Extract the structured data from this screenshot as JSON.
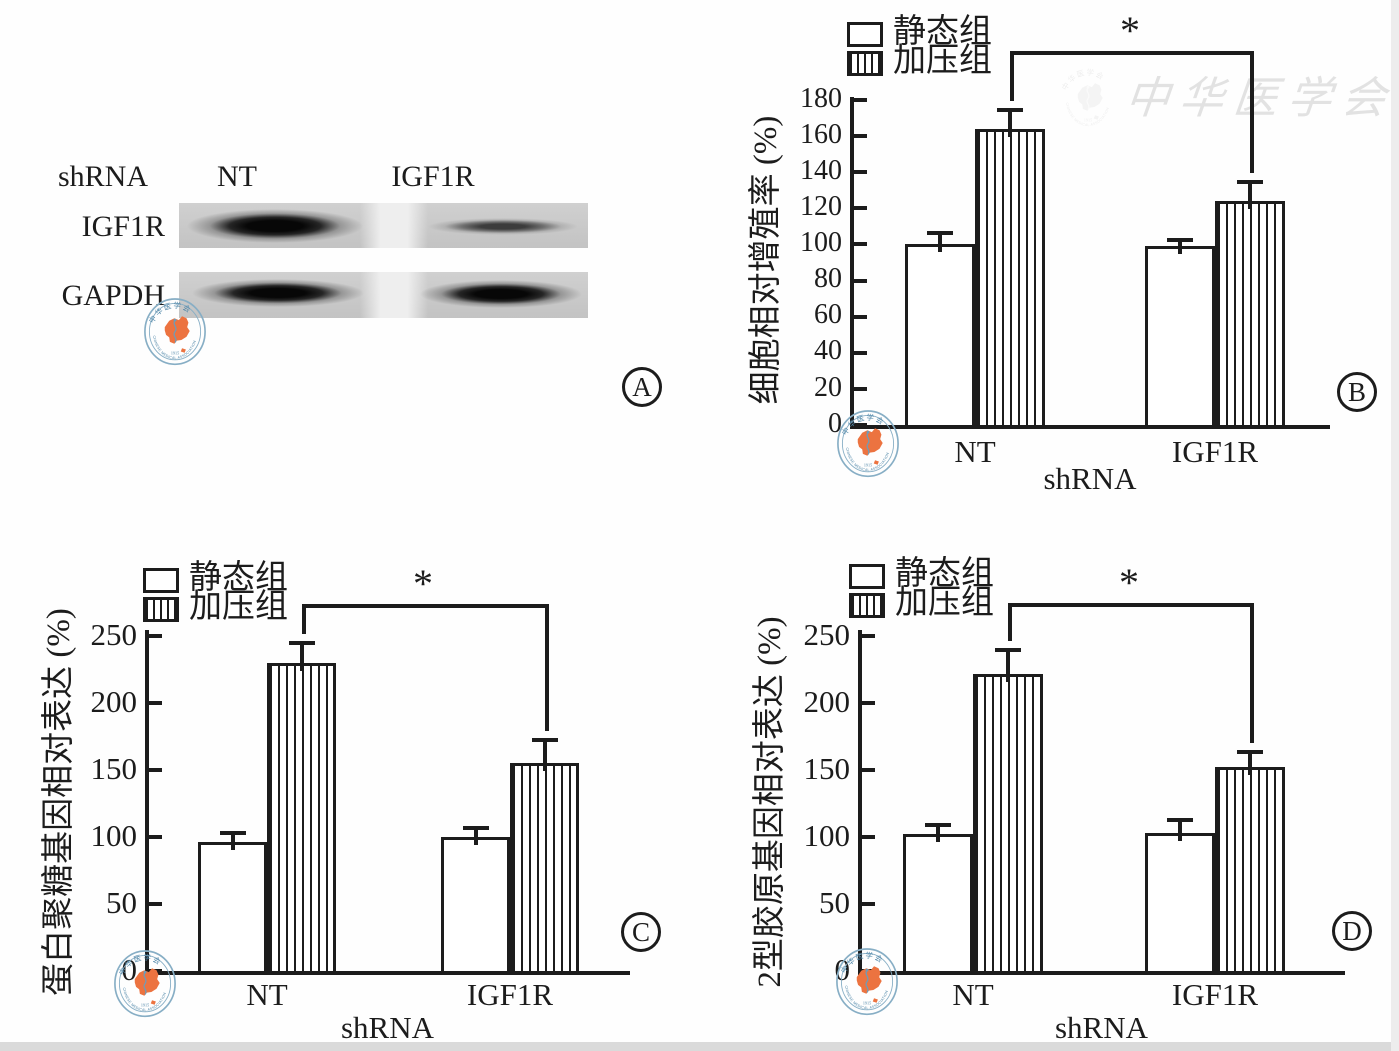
{
  "figure_type": "research-figure",
  "watermark": {
    "seal_top_text": "中华医学会",
    "seal_bottom_text": "CHINESE MEDICAL ASSOCIATION",
    "seal_year": "1915",
    "script_text": "中华医学会",
    "colors": {
      "ring_blue": "#87aec5",
      "text_blue": "#4f86a8",
      "map_orange": "#ec7340",
      "faint_gray": "#e2e2e2"
    }
  },
  "blot": {
    "panel_label": "A",
    "row_header": "shRNA",
    "lanes": [
      "NT",
      "IGF1R"
    ],
    "rows": [
      {
        "label": "IGF1R"
      },
      {
        "label": "GAPDH"
      }
    ],
    "bands": [
      {
        "row": "IGF1R",
        "lane": "NT",
        "intensity": "strong"
      },
      {
        "row": "IGF1R",
        "lane": "IGF1R",
        "intensity": "weak"
      },
      {
        "row": "GAPDH",
        "lane": "NT",
        "intensity": "strong"
      },
      {
        "row": "GAPDH",
        "lane": "IGF1R",
        "intensity": "strong"
      }
    ]
  },
  "legend": {
    "items": [
      {
        "label": "静态组",
        "pattern": "open"
      },
      {
        "label": "加压组",
        "pattern": "striped"
      }
    ]
  },
  "chart_data": [
    {
      "id": "B",
      "type": "bar",
      "panel_label": "B",
      "title": "",
      "ylabel": "细胞相对增殖率 (%)",
      "xlabel": "shRNA",
      "categories": [
        "NT",
        "IGF1R"
      ],
      "ylim": [
        0,
        180
      ],
      "ytick_step": 20,
      "grid": false,
      "legend_position": "top-left",
      "series": [
        {
          "name": "静态组",
          "pattern": "open",
          "values": [
            100,
            99
          ],
          "errors": [
            6,
            3
          ]
        },
        {
          "name": "加压组",
          "pattern": "striped",
          "values": [
            164,
            124
          ],
          "errors": [
            10,
            10
          ]
        }
      ],
      "significance": {
        "marker": "*",
        "series": "加压组",
        "between": [
          "NT",
          "IGF1R"
        ]
      }
    },
    {
      "id": "C",
      "type": "bar",
      "panel_label": "C",
      "title": "",
      "ylabel": "蛋白聚糖基因相对表达 (%)",
      "xlabel": "shRNA",
      "categories": [
        "NT",
        "IGF1R"
      ],
      "ylim": [
        0,
        250
      ],
      "ytick_step": 50,
      "grid": false,
      "legend_position": "top-left",
      "series": [
        {
          "name": "静态组",
          "pattern": "open",
          "values": [
            96,
            100
          ],
          "errors": [
            6,
            6
          ]
        },
        {
          "name": "加压组",
          "pattern": "striped",
          "values": [
            230,
            155
          ],
          "errors": [
            14,
            17
          ]
        }
      ],
      "significance": {
        "marker": "*",
        "series": "加压组",
        "between": [
          "NT",
          "IGF1R"
        ]
      }
    },
    {
      "id": "D",
      "type": "bar",
      "panel_label": "D",
      "title": "",
      "ylabel": "2型胶原基因相对表达 (%)",
      "xlabel": "shRNA",
      "categories": [
        "NT",
        "IGF1R"
      ],
      "ylim": [
        0,
        250
      ],
      "ytick_step": 50,
      "grid": false,
      "legend_position": "top-left",
      "series": [
        {
          "name": "静态组",
          "pattern": "open",
          "values": [
            102,
            103
          ],
          "errors": [
            6,
            9
          ]
        },
        {
          "name": "加压组",
          "pattern": "striped",
          "values": [
            222,
            152
          ],
          "errors": [
            17,
            11
          ]
        }
      ],
      "significance": {
        "marker": "*",
        "series": "加压组",
        "between": [
          "NT",
          "IGF1R"
        ]
      }
    }
  ]
}
